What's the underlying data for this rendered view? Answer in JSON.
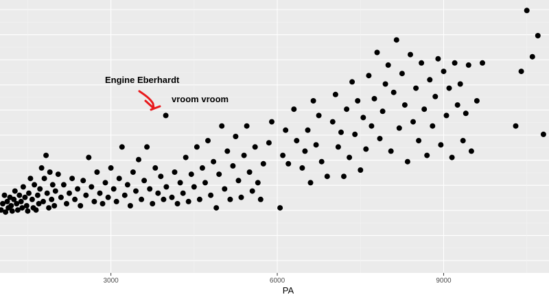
{
  "colors": {
    "panel_bg": "#ebebeb",
    "grid_major": "#ffffff",
    "grid_minor": "#f4f4f4",
    "point": "#000000",
    "arrow": "#e8191c",
    "text": "#000000",
    "tick_text": "#4d4d4d"
  },
  "chart_data": {
    "type": "scatter",
    "xlabel": "PA",
    "ylabel": "",
    "title": "",
    "x_ticks": [
      3000,
      6000,
      9000
    ],
    "x_tick_labels": [
      "3000",
      "6000",
      "9000"
    ],
    "xlim": [
      1000,
      10900
    ],
    "ylim": [
      -0.3,
      1.0
    ],
    "grid": true,
    "annotations": [
      {
        "label": "Engine Eberhardt",
        "near": "highlighted point"
      },
      {
        "label": "vroom vroom",
        "near": "highlighted point"
      }
    ],
    "highlighted_point": [
      3990,
      0.45
    ],
    "points": [
      [
        1020,
        0.0
      ],
      [
        1050,
        0.03
      ],
      [
        1080,
        0.07
      ],
      [
        1100,
        -0.01
      ],
      [
        1130,
        0.04
      ],
      [
        1150,
        0.01
      ],
      [
        1180,
        0.06
      ],
      [
        1200,
        0.02
      ],
      [
        1220,
        -0.005
      ],
      [
        1250,
        0.05
      ],
      [
        1270,
        0.09
      ],
      [
        1300,
        0.03
      ],
      [
        1320,
        0.0
      ],
      [
        1350,
        0.07
      ],
      [
        1380,
        0.04
      ],
      [
        1400,
        0.01
      ],
      [
        1420,
        0.11
      ],
      [
        1450,
        0.06
      ],
      [
        1480,
        0.02
      ],
      [
        1500,
        -0.005
      ],
      [
        1520,
        0.08
      ],
      [
        1550,
        0.15
      ],
      [
        1580,
        0.05
      ],
      [
        1600,
        0.01
      ],
      [
        1620,
        0.12
      ],
      [
        1650,
        0.0
      ],
      [
        1680,
        0.07
      ],
      [
        1700,
        0.03
      ],
      [
        1720,
        0.1
      ],
      [
        1750,
        0.2
      ],
      [
        1780,
        0.04
      ],
      [
        1800,
        0.15
      ],
      [
        1830,
        0.26
      ],
      [
        1850,
        0.08
      ],
      [
        1880,
        0.01
      ],
      [
        1900,
        0.18
      ],
      [
        1930,
        0.05
      ],
      [
        1950,
        0.12
      ],
      [
        1980,
        0.02
      ],
      [
        2000,
        0.09
      ],
      [
        2050,
        0.17
      ],
      [
        2100,
        0.06
      ],
      [
        2150,
        0.12
      ],
      [
        2200,
        0.03
      ],
      [
        2250,
        0.08
      ],
      [
        2300,
        0.15
      ],
      [
        2350,
        0.05
      ],
      [
        2400,
        0.1
      ],
      [
        2450,
        0.02
      ],
      [
        2500,
        0.14
      ],
      [
        2550,
        0.07
      ],
      [
        2600,
        0.25
      ],
      [
        2650,
        0.11
      ],
      [
        2700,
        0.04
      ],
      [
        2750,
        0.18
      ],
      [
        2800,
        0.08
      ],
      [
        2850,
        0.03
      ],
      [
        2900,
        0.13
      ],
      [
        2950,
        0.06
      ],
      [
        3000,
        0.2
      ],
      [
        3050,
        0.1
      ],
      [
        3100,
        0.04
      ],
      [
        3150,
        0.15
      ],
      [
        3200,
        0.3
      ],
      [
        3250,
        0.07
      ],
      [
        3300,
        0.12
      ],
      [
        3350,
        0.02
      ],
      [
        3400,
        0.18
      ],
      [
        3450,
        0.09
      ],
      [
        3500,
        0.24
      ],
      [
        3550,
        0.05
      ],
      [
        3600,
        0.14
      ],
      [
        3650,
        0.3
      ],
      [
        3700,
        0.1
      ],
      [
        3750,
        0.03
      ],
      [
        3800,
        0.2
      ],
      [
        3850,
        0.08
      ],
      [
        3900,
        0.16
      ],
      [
        3950,
        0.05
      ],
      [
        4000,
        0.11
      ],
      [
        4100,
        0.06
      ],
      [
        4150,
        0.18
      ],
      [
        4200,
        0.03
      ],
      [
        4250,
        0.13
      ],
      [
        4300,
        0.08
      ],
      [
        4350,
        0.25
      ],
      [
        4400,
        0.04
      ],
      [
        4450,
        0.17
      ],
      [
        4500,
        0.11
      ],
      [
        4550,
        0.3
      ],
      [
        4600,
        0.05
      ],
      [
        4650,
        0.2
      ],
      [
        4700,
        0.13
      ],
      [
        4750,
        0.33
      ],
      [
        4800,
        0.07
      ],
      [
        4850,
        0.23
      ],
      [
        4900,
        0.01
      ],
      [
        4950,
        0.17
      ],
      [
        5000,
        0.4
      ],
      [
        5050,
        0.1
      ],
      [
        5100,
        0.28
      ],
      [
        5150,
        0.05
      ],
      [
        5200,
        0.21
      ],
      [
        5250,
        0.35
      ],
      [
        5300,
        0.14
      ],
      [
        5350,
        0.06
      ],
      [
        5400,
        0.26
      ],
      [
        5450,
        0.4
      ],
      [
        5500,
        0.18
      ],
      [
        5550,
        0.09
      ],
      [
        5600,
        0.3
      ],
      [
        5650,
        0.13
      ],
      [
        5700,
        0.05
      ],
      [
        5750,
        0.22
      ],
      [
        5850,
        0.32
      ],
      [
        5900,
        0.42
      ],
      [
        6050,
        0.01
      ],
      [
        6100,
        0.26
      ],
      [
        6150,
        0.38
      ],
      [
        6200,
        0.22
      ],
      [
        6300,
        0.48
      ],
      [
        6350,
        0.33
      ],
      [
        6450,
        0.2
      ],
      [
        6500,
        0.28
      ],
      [
        6550,
        0.38
      ],
      [
        6600,
        0.13
      ],
      [
        6650,
        0.52
      ],
      [
        6700,
        0.31
      ],
      [
        6750,
        0.45
      ],
      [
        6800,
        0.23
      ],
      [
        6900,
        0.16
      ],
      [
        7000,
        0.42
      ],
      [
        7050,
        0.55
      ],
      [
        7100,
        0.3
      ],
      [
        7150,
        0.37
      ],
      [
        7200,
        0.16
      ],
      [
        7250,
        0.48
      ],
      [
        7300,
        0.25
      ],
      [
        7350,
        0.61
      ],
      [
        7400,
        0.36
      ],
      [
        7450,
        0.52
      ],
      [
        7500,
        0.19
      ],
      [
        7550,
        0.44
      ],
      [
        7600,
        0.29
      ],
      [
        7650,
        0.64
      ],
      [
        7700,
        0.4
      ],
      [
        7750,
        0.53
      ],
      [
        7800,
        0.75
      ],
      [
        7850,
        0.34
      ],
      [
        7900,
        0.47
      ],
      [
        7950,
        0.6
      ],
      [
        8000,
        0.69
      ],
      [
        8050,
        0.28
      ],
      [
        8100,
        0.56
      ],
      [
        8150,
        0.81
      ],
      [
        8200,
        0.39
      ],
      [
        8250,
        0.65
      ],
      [
        8300,
        0.5
      ],
      [
        8350,
        0.23
      ],
      [
        8400,
        0.74
      ],
      [
        8450,
        0.42
      ],
      [
        8500,
        0.58
      ],
      [
        8550,
        0.33
      ],
      [
        8600,
        0.7
      ],
      [
        8650,
        0.48
      ],
      [
        8700,
        0.26
      ],
      [
        8750,
        0.62
      ],
      [
        8800,
        0.4
      ],
      [
        8850,
        0.54
      ],
      [
        8900,
        0.72
      ],
      [
        8950,
        0.31
      ],
      [
        9000,
        0.66
      ],
      [
        9050,
        0.45
      ],
      [
        9100,
        0.58
      ],
      [
        9150,
        0.25
      ],
      [
        9200,
        0.7
      ],
      [
        9250,
        0.5
      ],
      [
        9300,
        0.6
      ],
      [
        9350,
        0.33
      ],
      [
        9400,
        0.46
      ],
      [
        9450,
        0.69
      ],
      [
        9500,
        0.28
      ],
      [
        9600,
        0.52
      ],
      [
        9700,
        0.7
      ],
      [
        10300,
        0.4
      ],
      [
        10400,
        0.66
      ],
      [
        10500,
        0.95
      ],
      [
        10600,
        0.73
      ],
      [
        10700,
        0.83
      ],
      [
        10800,
        0.36
      ]
    ]
  }
}
